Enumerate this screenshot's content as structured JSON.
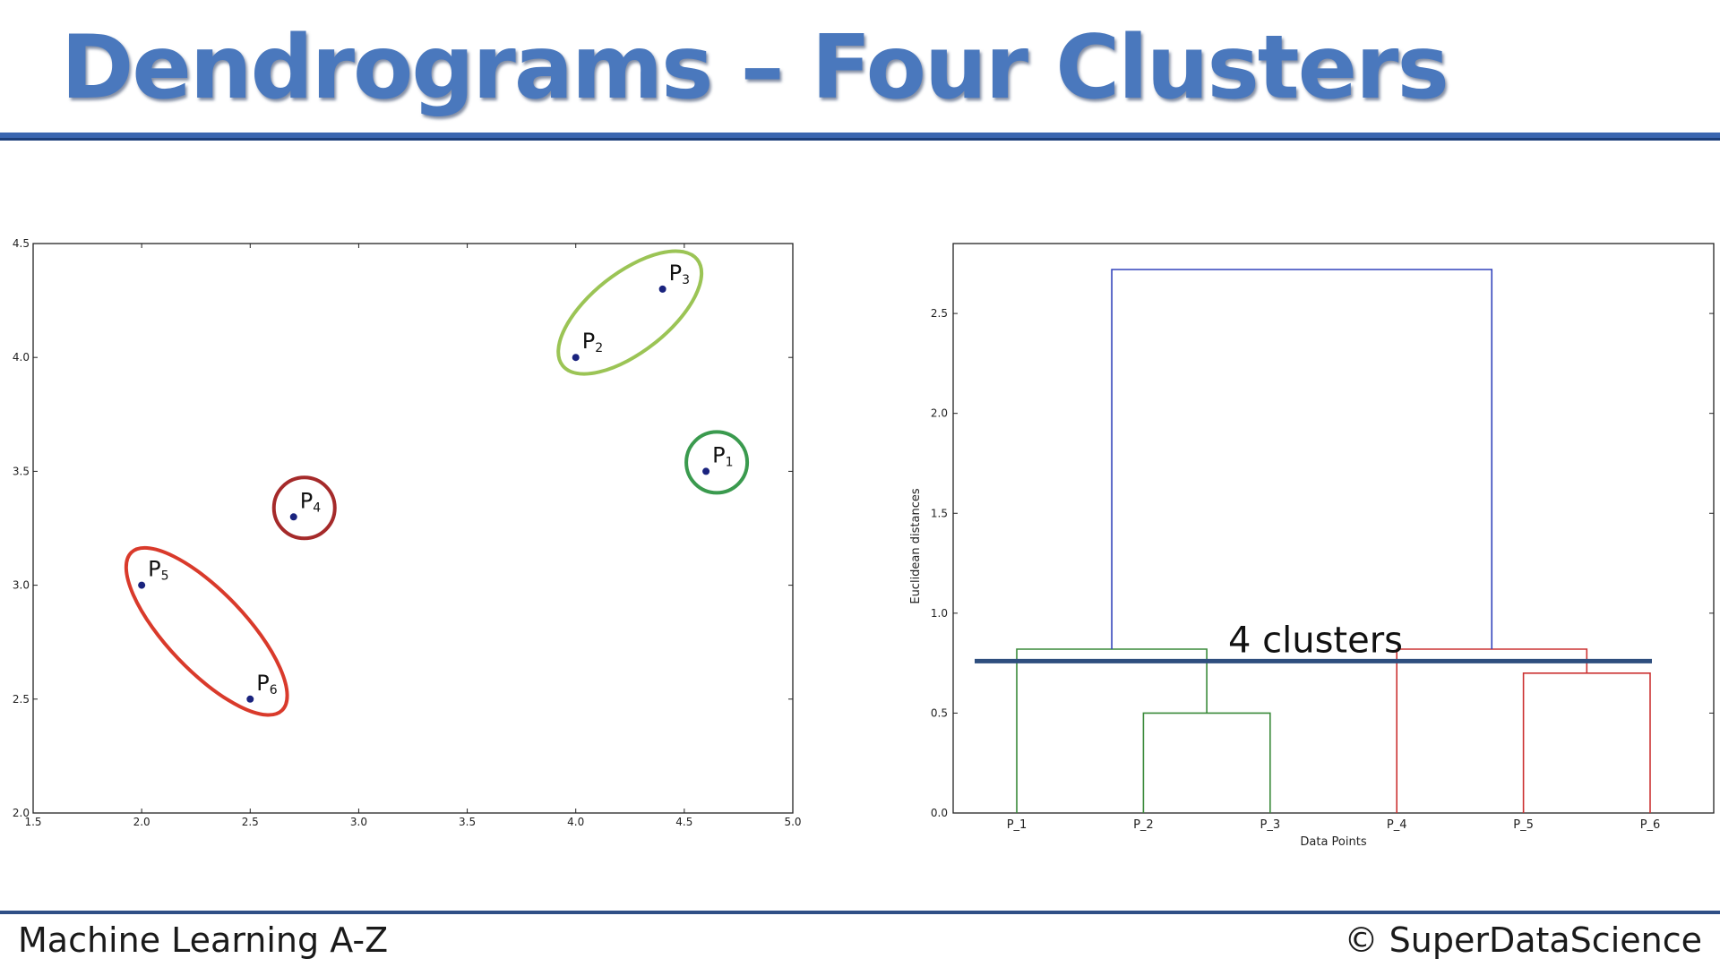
{
  "slide": {
    "title": "Dendrograms – Four Clusters",
    "footer_left": "Machine Learning A-Z",
    "footer_right": "© SuperDataScience",
    "colors": {
      "title": "#4a78bd",
      "rule": "#3a66b0"
    }
  },
  "chart_data": [
    {
      "type": "scatter",
      "xlim": [
        1.5,
        5.0
      ],
      "ylim": [
        2.0,
        4.5
      ],
      "xticks": [
        "1.5",
        "2.0",
        "2.5",
        "3.0",
        "3.5",
        "4.0",
        "4.5",
        "5.0"
      ],
      "yticks": [
        "2.0",
        "2.5",
        "3.0",
        "3.5",
        "4.0",
        "4.5"
      ],
      "points": [
        {
          "label": "P",
          "sub": "1",
          "x": 4.6,
          "y": 3.5
        },
        {
          "label": "P",
          "sub": "2",
          "x": 4.0,
          "y": 4.0
        },
        {
          "label": "P",
          "sub": "3",
          "x": 4.4,
          "y": 4.3
        },
        {
          "label": "P",
          "sub": "4",
          "x": 2.7,
          "y": 3.3
        },
        {
          "label": "P",
          "sub": "5",
          "x": 2.0,
          "y": 3.0
        },
        {
          "label": "P",
          "sub": "6",
          "x": 2.5,
          "y": 2.5
        }
      ],
      "clusters": [
        {
          "members": [
            "P2",
            "P3"
          ],
          "color": "#9bc455"
        },
        {
          "members": [
            "P1"
          ],
          "color": "#3a9a4e"
        },
        {
          "members": [
            "P4"
          ],
          "color": "#a52a2a"
        },
        {
          "members": [
            "P5",
            "P6"
          ],
          "color": "#d93a2b"
        }
      ],
      "point_color": "#1a237e",
      "grid": false
    },
    {
      "type": "dendrogram",
      "ylabel": "Euclidean distances",
      "xlabel": "Data Points",
      "leaves": [
        "P_1",
        "P_2",
        "P_3",
        "P_4",
        "P_5",
        "P_6"
      ],
      "ylim": [
        0.0,
        2.85
      ],
      "yticks": [
        "0.0",
        "0.5",
        "1.0",
        "1.5",
        "2.0",
        "2.5"
      ],
      "merges": [
        {
          "left": "P_2",
          "right": "P_3",
          "height": 0.5,
          "color": "#3a8a3a"
        },
        {
          "left": "P_1",
          "right": "P_2+P_3",
          "height": 0.82,
          "color": "#3a8a3a"
        },
        {
          "left": "P_5",
          "right": "P_6",
          "height": 0.7,
          "color": "#cc3333"
        },
        {
          "left": "P_4",
          "right": "P_5+P_6",
          "height": 0.82,
          "color": "#cc3333"
        },
        {
          "left": "P_1+P_2+P_3",
          "right": "P_4+P_5+P_6",
          "height": 2.72,
          "color": "#3344bb"
        }
      ],
      "threshold": {
        "height": 0.76,
        "label": "4 clusters",
        "color": "#2e4e7e"
      },
      "grid": false
    }
  ]
}
